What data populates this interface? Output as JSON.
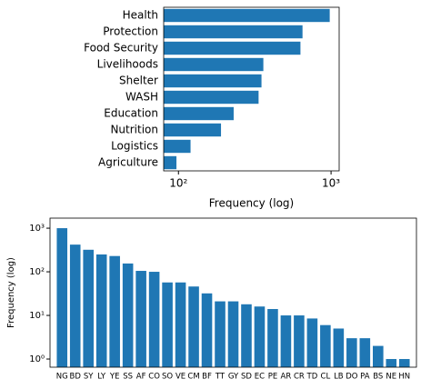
{
  "chart_data": [
    {
      "type": "barh",
      "xscale": "log",
      "color": "#1f77b4",
      "xlabel": "Frequency (log)",
      "categories": [
        "Health",
        "Protection",
        "Food Security",
        "Livelihoods",
        "Shelter",
        "WASH",
        "Education",
        "Nutrition",
        "Logistics",
        "Agriculture"
      ],
      "values": [
        980,
        650,
        630,
        360,
        350,
        335,
        230,
        190,
        120,
        97
      ],
      "xlim": [
        80,
        1130
      ],
      "xticks": [
        {
          "value": 100,
          "label": "10²"
        },
        {
          "value": 1000,
          "label": "10³"
        }
      ]
    },
    {
      "type": "bar",
      "yscale": "log",
      "color": "#1f77b4",
      "ylabel": "Frequency (log)",
      "categories": [
        "NG",
        "BD",
        "SY",
        "LY",
        "YE",
        "SS",
        "AF",
        "CO",
        "SO",
        "VE",
        "CM",
        "BF",
        "TT",
        "GY",
        "SD",
        "EC",
        "PE",
        "AR",
        "CR",
        "TD",
        "CL",
        "LB",
        "DO",
        "PA",
        "BS",
        "NE",
        "HN"
      ],
      "values": [
        1000,
        420,
        320,
        250,
        230,
        155,
        105,
        100,
        57,
        57,
        46,
        32,
        21,
        21,
        18,
        16,
        14,
        10,
        10,
        8.5,
        6,
        5,
        3,
        3,
        2,
        1,
        1
      ],
      "ylim": [
        0.65,
        1700
      ],
      "yticks": [
        {
          "value": 1,
          "label": "10⁰"
        },
        {
          "value": 10,
          "label": "10¹"
        },
        {
          "value": 100,
          "label": "10²"
        },
        {
          "value": 1000,
          "label": "10³"
        }
      ]
    }
  ]
}
